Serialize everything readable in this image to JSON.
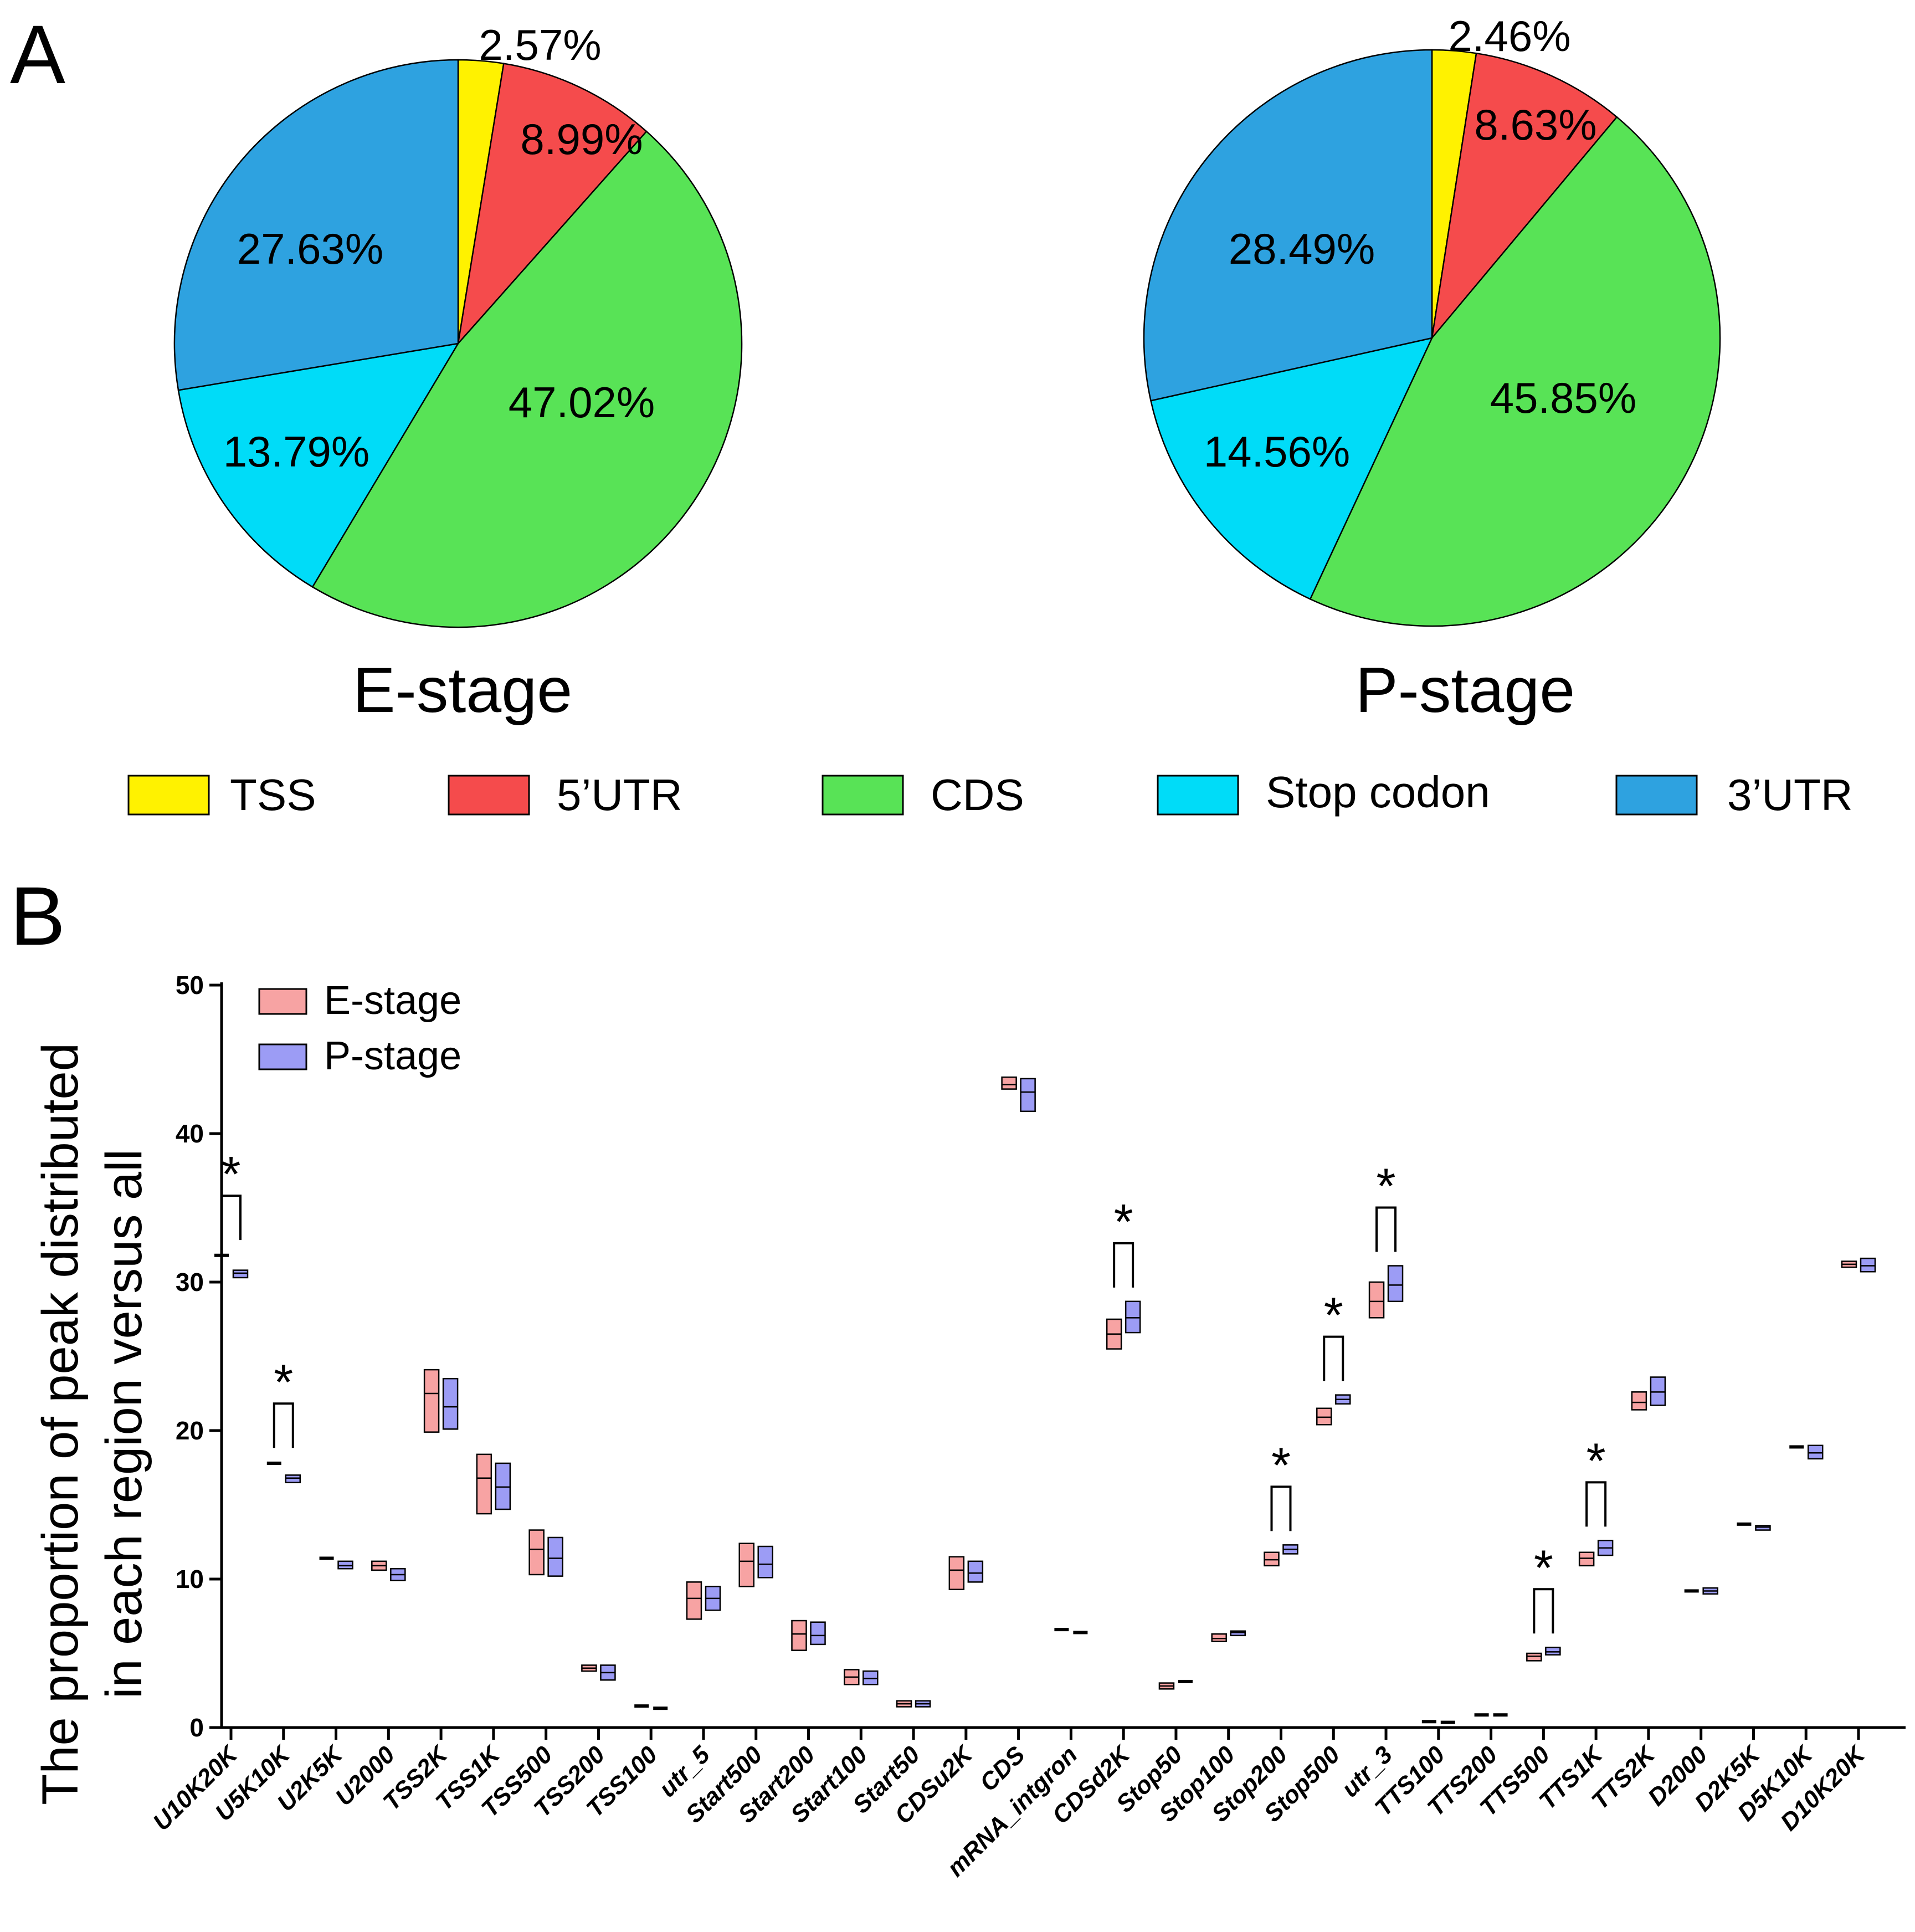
{
  "panel_a_label": "A",
  "panel_b_label": "B",
  "colors": {
    "TSS": "#fff200",
    "5UTR": "#f54b4c",
    "CDS": "#58e356",
    "Stop codon": "#00dcf8",
    "3UTR": "#2ea2e0",
    "e_box": "#f7a3a3",
    "p_box": "#9c9cf5"
  },
  "legend_a": [
    "TSS",
    "5’UTR",
    "CDS",
    "Stop codon",
    "3’UTR"
  ],
  "chart_data": [
    {
      "type": "pie",
      "title": "E-stage",
      "categories": [
        "TSS",
        "5’UTR",
        "CDS",
        "Stop codon",
        "3’UTR"
      ],
      "values": [
        2.57,
        8.99,
        47.02,
        13.79,
        27.63
      ],
      "labels": [
        "2.57%",
        "8.99%",
        "47.02%",
        "13.79%",
        "27.63%"
      ]
    },
    {
      "type": "pie",
      "title": "P-stage",
      "categories": [
        "TSS",
        "5’UTR",
        "CDS",
        "Stop codon",
        "3’UTR"
      ],
      "values": [
        2.46,
        8.63,
        45.85,
        14.56,
        28.49
      ],
      "labels": [
        "2.46%",
        "8.63%",
        "45.85%",
        "14.56%",
        "28.49%"
      ]
    },
    {
      "type": "box",
      "title": "",
      "ylabel_lines": [
        "The proportion of peak distributed",
        "in each region versus all"
      ],
      "xlabel": "",
      "ylim": [
        0,
        50
      ],
      "yticks": [
        0,
        10,
        20,
        30,
        40,
        50
      ],
      "legend": [
        "E-stage",
        "P-stage"
      ],
      "significance_marker": "*",
      "categories": [
        "U10K20K",
        "U5K10K",
        "U2K5K",
        "U2000",
        "TSS2K",
        "TSS1K",
        "TSS500",
        "TSS200",
        "TSS100",
        "utr_5",
        "Start500",
        "Start200",
        "Start100",
        "Start50",
        "CDSu2K",
        "CDS",
        "mRNA_intgron",
        "CDSd2K",
        "Stop50",
        "Stop100",
        "Stop200",
        "Stop500",
        "utr_3",
        "TTS100",
        "TTS200",
        "TTS500",
        "TTS1K",
        "TTS2K",
        "D2000",
        "D2K5K",
        "D5K10K",
        "D10K20K"
      ],
      "series": [
        {
          "name": "E-stage",
          "ranges": [
            [
              31.7,
              31.8,
              31.9
            ],
            [
              17.7,
              17.8,
              17.9
            ],
            [
              11.3,
              11.4,
              11.5
            ],
            [
              10.6,
              10.9,
              11.2
            ],
            [
              19.9,
              22.5,
              24.1
            ],
            [
              14.4,
              16.8,
              18.4
            ],
            [
              10.3,
              12.0,
              13.3
            ],
            [
              3.8,
              4.0,
              4.2
            ],
            [
              1.35,
              1.45,
              1.55
            ],
            [
              7.3,
              8.7,
              9.8
            ],
            [
              9.5,
              11.2,
              12.4
            ],
            [
              5.2,
              6.3,
              7.2
            ],
            [
              2.9,
              3.4,
              3.9
            ],
            [
              1.4,
              1.6,
              1.8
            ],
            [
              9.3,
              10.6,
              11.5
            ],
            [
              43.0,
              43.3,
              43.8
            ],
            [
              6.5,
              6.6,
              6.7
            ],
            [
              25.5,
              26.5,
              27.5
            ],
            [
              2.6,
              2.8,
              3.0
            ],
            [
              5.8,
              6.0,
              6.3
            ],
            [
              10.9,
              11.3,
              11.8
            ],
            [
              20.4,
              20.9,
              21.5
            ],
            [
              27.6,
              28.7,
              30.0
            ],
            [
              0.35,
              0.4,
              0.45
            ],
            [
              0.8,
              0.85,
              0.9
            ],
            [
              4.5,
              4.8,
              5.0
            ],
            [
              10.9,
              11.4,
              11.8
            ],
            [
              21.4,
              21.9,
              22.6
            ],
            [
              9.1,
              9.2,
              9.3
            ],
            [
              13.6,
              13.7,
              13.8
            ],
            [
              18.8,
              18.9,
              19.0
            ],
            [
              31.0,
              31.2,
              31.4
            ]
          ]
        },
        {
          "name": "P-stage",
          "ranges": [
            [
              30.3,
              30.6,
              30.8
            ],
            [
              16.5,
              16.8,
              17.0
            ],
            [
              10.7,
              10.9,
              11.2
            ],
            [
              9.9,
              10.3,
              10.7
            ],
            [
              20.1,
              21.6,
              23.5
            ],
            [
              14.7,
              16.2,
              17.8
            ],
            [
              10.2,
              11.4,
              12.8
            ],
            [
              3.2,
              3.7,
              4.2
            ],
            [
              1.2,
              1.3,
              1.4
            ],
            [
              7.9,
              8.7,
              9.5
            ],
            [
              10.1,
              11.0,
              12.2
            ],
            [
              5.6,
              6.2,
              7.1
            ],
            [
              2.9,
              3.3,
              3.8
            ],
            [
              1.4,
              1.6,
              1.8
            ],
            [
              9.8,
              10.4,
              11.2
            ],
            [
              41.5,
              42.8,
              43.7
            ],
            [
              6.3,
              6.4,
              6.5
            ],
            [
              26.6,
              27.6,
              28.7
            ],
            [
              3.0,
              3.1,
              3.2
            ],
            [
              6.2,
              6.4,
              6.5
            ],
            [
              11.7,
              12.0,
              12.3
            ],
            [
              21.8,
              22.1,
              22.4
            ],
            [
              28.7,
              29.8,
              31.1
            ],
            [
              0.3,
              0.35,
              0.4
            ],
            [
              0.8,
              0.85,
              0.9
            ],
            [
              4.9,
              5.1,
              5.4
            ],
            [
              11.6,
              12.1,
              12.6
            ],
            [
              21.7,
              22.6,
              23.6
            ],
            [
              9.0,
              9.2,
              9.4
            ],
            [
              13.3,
              13.5,
              13.6
            ],
            [
              18.1,
              18.5,
              19.0
            ],
            [
              30.7,
              31.1,
              31.6
            ]
          ]
        }
      ],
      "significant_categories": [
        "U10K20K",
        "U5K10K",
        "CDSd2K",
        "Stop200",
        "Stop500",
        "utr_3",
        "TTS500",
        "TTS1K"
      ]
    }
  ]
}
